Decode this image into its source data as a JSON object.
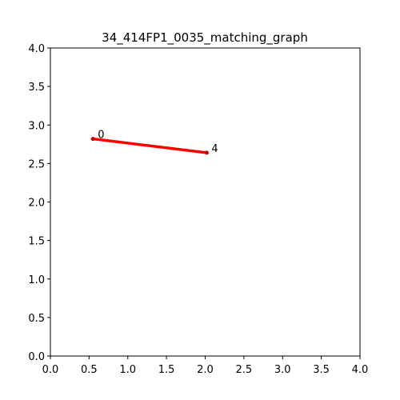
{
  "chart_data": {
    "type": "line",
    "title": "34_414FP1_0035_matching_graph",
    "xlabel": "",
    "ylabel": "",
    "xlim": [
      0,
      4
    ],
    "ylim": [
      0,
      4
    ],
    "x_ticks": [
      "0.0",
      "0.5",
      "1.0",
      "1.5",
      "2.0",
      "2.5",
      "3.0",
      "3.5",
      "4.0"
    ],
    "y_ticks": [
      "0.0",
      "0.5",
      "1.0",
      "1.5",
      "2.0",
      "2.5",
      "3.0",
      "3.5",
      "4.0"
    ],
    "grid": false,
    "nodes": [
      {
        "label": "0",
        "x": 0.55,
        "y": 2.82
      },
      {
        "label": "4",
        "x": 2.02,
        "y": 2.64
      }
    ],
    "edges": [
      {
        "from": 0,
        "to": 1,
        "color": "#ff0000"
      }
    ]
  }
}
